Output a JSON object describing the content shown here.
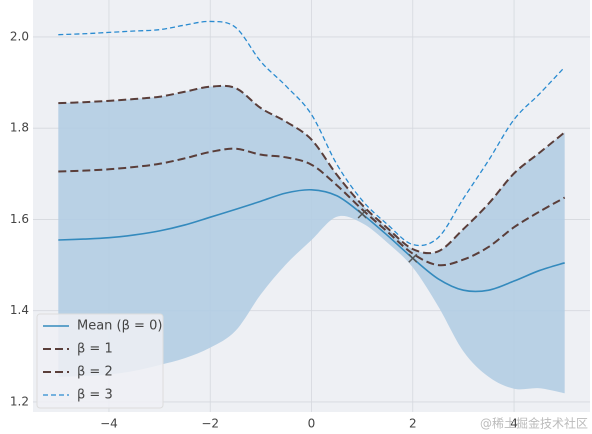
{
  "chart_data": {
    "type": "line",
    "x": [
      -5,
      -4.5,
      -4,
      -3.5,
      -3,
      -2.5,
      -2,
      -1.5,
      -1,
      -0.5,
      0,
      0.5,
      1,
      1.5,
      2,
      2.5,
      3,
      3.5,
      4,
      4.5,
      5
    ],
    "series": [
      {
        "name": "Mean (β = 0)",
        "color": "#348abd",
        "linestyle": "solid",
        "values": [
          1.555,
          1.557,
          1.56,
          1.566,
          1.575,
          1.588,
          1.605,
          1.622,
          1.64,
          1.658,
          1.665,
          1.652,
          1.612,
          1.565,
          1.515,
          1.47,
          1.445,
          1.445,
          1.465,
          1.488,
          1.505
        ]
      },
      {
        "name": "β = 1",
        "color": "#5a3e3a",
        "linestyle": "dashed",
        "values": [
          1.705,
          1.707,
          1.71,
          1.715,
          1.722,
          1.734,
          1.748,
          1.755,
          1.742,
          1.736,
          1.72,
          1.675,
          1.622,
          1.573,
          1.525,
          1.5,
          1.512,
          1.54,
          1.583,
          1.617,
          1.648
        ]
      },
      {
        "name": "β = 2",
        "color": "#5a3e3a",
        "linestyle": "dashed",
        "values": [
          1.855,
          1.857,
          1.86,
          1.864,
          1.869,
          1.88,
          1.891,
          1.888,
          1.844,
          1.814,
          1.775,
          1.698,
          1.632,
          1.581,
          1.535,
          1.53,
          1.579,
          1.635,
          1.701,
          1.746,
          1.791
        ]
      },
      {
        "name": "β = 3",
        "color": "#2a8bd0",
        "linestyle": "thin-dashed",
        "values": [
          2.005,
          2.007,
          2.01,
          2.013,
          2.016,
          2.026,
          2.034,
          2.021,
          1.946,
          1.892,
          1.83,
          1.721,
          1.642,
          1.589,
          1.545,
          1.56,
          1.646,
          1.73,
          1.819,
          1.875,
          1.934
        ]
      }
    ],
    "band": {
      "color": "#b3cde3",
      "lower": [
        1.255,
        1.257,
        1.26,
        1.268,
        1.281,
        1.296,
        1.319,
        1.356,
        1.436,
        1.502,
        1.555,
        1.606,
        1.592,
        1.549,
        1.495,
        1.41,
        1.311,
        1.255,
        1.229,
        1.23,
        1.219
      ],
      "upper": [
        1.855,
        1.857,
        1.86,
        1.864,
        1.869,
        1.88,
        1.891,
        1.888,
        1.844,
        1.814,
        1.775,
        1.698,
        1.632,
        1.581,
        1.535,
        1.53,
        1.579,
        1.635,
        1.701,
        1.746,
        1.791
      ]
    },
    "observations": {
      "x": [
        1,
        2
      ],
      "y": [
        1.612,
        1.515
      ],
      "color": "#555555"
    },
    "xlim": [
      -5.5,
      5.5
    ],
    "ylim": [
      1.178,
      2.081
    ],
    "xticks": [
      {
        "value": -4,
        "label": "−4"
      },
      {
        "value": -2,
        "label": "−2"
      },
      0,
      2,
      4
    ],
    "yticks": [
      {
        "value": 1.2,
        "label": "1.2"
      },
      {
        "value": 1.4,
        "label": "1.4"
      },
      {
        "value": 1.6,
        "label": "1.6"
      },
      {
        "value": 1.8,
        "label": "1.8"
      },
      {
        "value": 2.0,
        "label": "2.0"
      }
    ],
    "grid": true,
    "legend": "lower left",
    "watermark": "@稀土掘金技术社区"
  }
}
